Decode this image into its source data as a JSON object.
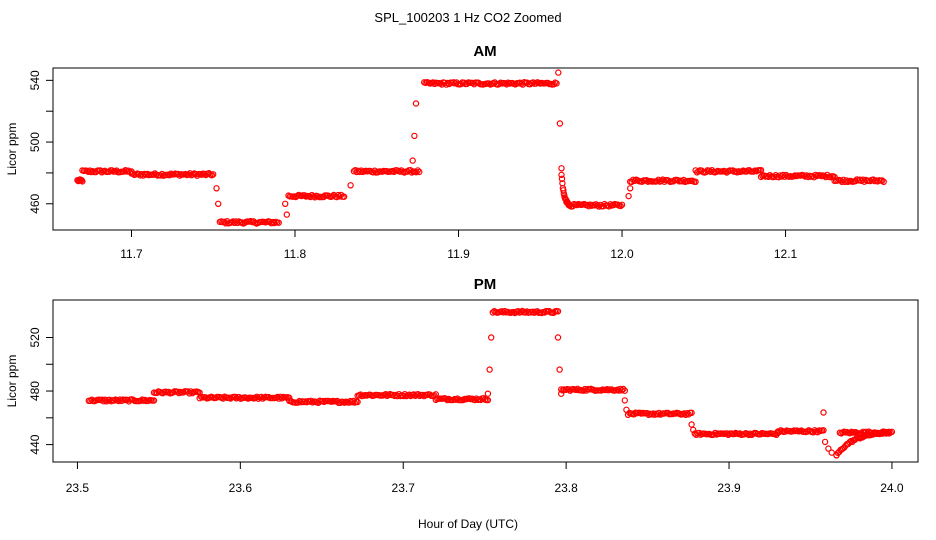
{
  "figure": {
    "title": "SPL_100203  1 Hz CO2 Zoomed",
    "xlabel": "Hour of Day (UTC)",
    "marker_color": "#ff0000"
  },
  "chart_data": [
    {
      "type": "scatter",
      "title": "AM",
      "ylabel": "Licor ppm",
      "xlim": [
        11.652,
        12.181
      ],
      "ylim": [
        443,
        548
      ],
      "xticks": [
        11.7,
        11.8,
        11.9,
        12.0,
        12.1
      ],
      "xtick_labels": [
        "11.7",
        "11.8",
        "11.9",
        "12.0",
        "12.1"
      ],
      "yticks": [
        460,
        480,
        500,
        520,
        540
      ],
      "ytick_labels": [
        "460",
        "",
        "500",
        "",
        "540"
      ],
      "segments": [
        {
          "x0": 11.667,
          "x1": 11.67,
          "y": 475
        },
        {
          "x0": 11.67,
          "x1": 11.7,
          "y": 481
        },
        {
          "x0": 11.7,
          "x1": 11.75,
          "y": 479
        },
        {
          "x0": 11.754,
          "x1": 11.79,
          "y": 448
        },
        {
          "x0": 11.796,
          "x1": 11.83,
          "y": 465
        },
        {
          "x0": 11.836,
          "x1": 11.876,
          "y": 481
        },
        {
          "x0": 11.879,
          "x1": 11.96,
          "y": 538
        },
        {
          "x0": 11.968,
          "x1": 12.0,
          "y": 459
        },
        {
          "x0": 12.005,
          "x1": 12.045,
          "y": 475
        },
        {
          "x0": 12.045,
          "x1": 12.085,
          "y": 481
        },
        {
          "x0": 12.085,
          "x1": 12.13,
          "y": 478
        },
        {
          "x0": 12.13,
          "x1": 12.16,
          "y": 475
        }
      ],
      "transitions": [
        {
          "x": 11.752,
          "y": 470
        },
        {
          "x": 11.753,
          "y": 460
        },
        {
          "x": 11.794,
          "y": 460
        },
        {
          "x": 11.795,
          "y": 453
        },
        {
          "x": 11.834,
          "y": 472
        },
        {
          "x": 11.872,
          "y": 488
        },
        {
          "x": 11.873,
          "y": 504
        },
        {
          "x": 11.874,
          "y": 525
        },
        {
          "x": 11.961,
          "y": 545
        },
        {
          "x": 11.962,
          "y": 512
        },
        {
          "x": 11.963,
          "y": 483
        },
        {
          "x": 12.004,
          "y": 465
        },
        {
          "x": 12.005,
          "y": 470
        }
      ]
    },
    {
      "type": "scatter",
      "title": "PM",
      "ylabel": "Licor ppm",
      "xlim": [
        23.485,
        24.016
      ],
      "ylim": [
        427,
        548
      ],
      "xticks": [
        23.5,
        23.6,
        23.7,
        23.8,
        23.9,
        24.0
      ],
      "xtick_labels": [
        "23.5",
        "23.6",
        "23.7",
        "23.8",
        "23.9",
        "24.0"
      ],
      "yticks": [
        440,
        460,
        480,
        500,
        520
      ],
      "ytick_labels": [
        "440",
        "",
        "480",
        "",
        "520"
      ],
      "segments": [
        {
          "x0": 23.507,
          "x1": 23.547,
          "y": 473
        },
        {
          "x0": 23.547,
          "x1": 23.575,
          "y": 479
        },
        {
          "x0": 23.575,
          "x1": 23.63,
          "y": 475
        },
        {
          "x0": 23.63,
          "x1": 23.672,
          "y": 472
        },
        {
          "x0": 23.672,
          "x1": 23.72,
          "y": 477
        },
        {
          "x0": 23.72,
          "x1": 23.752,
          "y": 474
        },
        {
          "x0": 23.755,
          "x1": 23.795,
          "y": 539
        },
        {
          "x0": 23.797,
          "x1": 23.836,
          "y": 481
        },
        {
          "x0": 23.838,
          "x1": 23.877,
          "y": 463
        },
        {
          "x0": 23.879,
          "x1": 23.93,
          "y": 448
        },
        {
          "x0": 23.93,
          "x1": 23.958,
          "y": 450
        },
        {
          "x0": 23.968,
          "x1": 24.0,
          "y": 449
        }
      ],
      "transitions": [
        {
          "x": 23.752,
          "y": 478
        },
        {
          "x": 23.753,
          "y": 496
        },
        {
          "x": 23.754,
          "y": 520
        },
        {
          "x": 23.795,
          "y": 520
        },
        {
          "x": 23.796,
          "y": 496
        },
        {
          "x": 23.797,
          "y": 478
        },
        {
          "x": 23.836,
          "y": 473
        },
        {
          "x": 23.837,
          "y": 466
        },
        {
          "x": 23.877,
          "y": 455
        },
        {
          "x": 23.878,
          "y": 451
        },
        {
          "x": 23.958,
          "y": 464
        },
        {
          "x": 23.959,
          "y": 442
        },
        {
          "x": 23.961,
          "y": 437
        },
        {
          "x": 23.963,
          "y": 434
        },
        {
          "x": 23.966,
          "y": 432
        }
      ]
    }
  ]
}
